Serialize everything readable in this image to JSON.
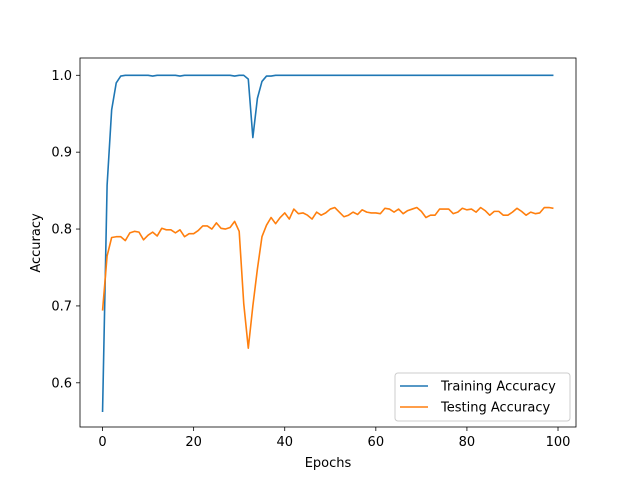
{
  "chart_data": {
    "type": "line",
    "title": "",
    "xlabel": "Epochs",
    "ylabel": "Accuracy",
    "xlim": [
      -4.95,
      103.95
    ],
    "ylim": [
      0.5425,
      1.0225
    ],
    "xticks": [
      0,
      20,
      40,
      60,
      80,
      100
    ],
    "xtick_labels": [
      "0",
      "20",
      "40",
      "60",
      "80",
      "100"
    ],
    "yticks": [
      0.6,
      0.7,
      0.8,
      0.9,
      1.0
    ],
    "ytick_labels": [
      "0.6",
      "0.7",
      "0.8",
      "0.9",
      "1.0"
    ],
    "grid": false,
    "legend_position": "lower-right",
    "x": [
      0,
      1,
      2,
      3,
      4,
      5,
      6,
      7,
      8,
      9,
      10,
      11,
      12,
      13,
      14,
      15,
      16,
      17,
      18,
      19,
      20,
      21,
      22,
      23,
      24,
      25,
      26,
      27,
      28,
      29,
      30,
      31,
      32,
      33,
      34,
      35,
      36,
      37,
      38,
      39,
      40,
      41,
      42,
      43,
      44,
      45,
      46,
      47,
      48,
      49,
      50,
      51,
      52,
      53,
      54,
      55,
      56,
      57,
      58,
      59,
      60,
      61,
      62,
      63,
      64,
      65,
      66,
      67,
      68,
      69,
      70,
      71,
      72,
      73,
      74,
      75,
      76,
      77,
      78,
      79,
      80,
      81,
      82,
      83,
      84,
      85,
      86,
      87,
      88,
      89,
      90,
      91,
      92,
      93,
      94,
      95,
      96,
      97,
      98,
      99
    ],
    "series": [
      {
        "name": "Training Accuracy",
        "color": "#1f77b4",
        "values": [
          0.562,
          0.857,
          0.955,
          0.99,
          0.999,
          1.0,
          1.0,
          1.0,
          1.0,
          1.0,
          1.0,
          0.999,
          1.0,
          1.0,
          1.0,
          1.0,
          1.0,
          0.999,
          1.0,
          1.0,
          1.0,
          1.0,
          1.0,
          1.0,
          1.0,
          1.0,
          1.0,
          1.0,
          1.0,
          0.999,
          1.0,
          1.0,
          0.995,
          0.919,
          0.97,
          0.992,
          0.999,
          0.999,
          1.0,
          1.0,
          1.0,
          1.0,
          1.0,
          1.0,
          1.0,
          1.0,
          1.0,
          1.0,
          1.0,
          1.0,
          1.0,
          1.0,
          1.0,
          1.0,
          1.0,
          1.0,
          1.0,
          1.0,
          1.0,
          1.0,
          1.0,
          1.0,
          1.0,
          1.0,
          1.0,
          1.0,
          1.0,
          1.0,
          1.0,
          1.0,
          1.0,
          1.0,
          1.0,
          1.0,
          1.0,
          1.0,
          1.0,
          1.0,
          1.0,
          1.0,
          1.0,
          1.0,
          1.0,
          1.0,
          1.0,
          1.0,
          1.0,
          1.0,
          1.0,
          1.0,
          1.0,
          1.0,
          1.0,
          1.0,
          1.0,
          1.0,
          1.0,
          1.0,
          1.0,
          1.0
        ]
      },
      {
        "name": "Testing Accuracy",
        "color": "#ff7f0e",
        "values": [
          0.694,
          0.765,
          0.789,
          0.79,
          0.79,
          0.785,
          0.795,
          0.797,
          0.796,
          0.786,
          0.792,
          0.796,
          0.791,
          0.801,
          0.799,
          0.799,
          0.795,
          0.799,
          0.79,
          0.794,
          0.794,
          0.798,
          0.804,
          0.804,
          0.8,
          0.808,
          0.801,
          0.8,
          0.802,
          0.81,
          0.797,
          0.703,
          0.645,
          0.7,
          0.748,
          0.79,
          0.805,
          0.815,
          0.807,
          0.815,
          0.821,
          0.813,
          0.826,
          0.82,
          0.821,
          0.818,
          0.813,
          0.822,
          0.818,
          0.821,
          0.826,
          0.828,
          0.822,
          0.816,
          0.818,
          0.822,
          0.819,
          0.825,
          0.822,
          0.821,
          0.821,
          0.82,
          0.827,
          0.826,
          0.822,
          0.826,
          0.82,
          0.824,
          0.826,
          0.828,
          0.823,
          0.815,
          0.818,
          0.818,
          0.826,
          0.826,
          0.826,
          0.82,
          0.822,
          0.827,
          0.825,
          0.826,
          0.822,
          0.828,
          0.824,
          0.818,
          0.823,
          0.823,
          0.818,
          0.818,
          0.822,
          0.827,
          0.823,
          0.818,
          0.822,
          0.82,
          0.821,
          0.828,
          0.828,
          0.827
        ]
      }
    ]
  }
}
